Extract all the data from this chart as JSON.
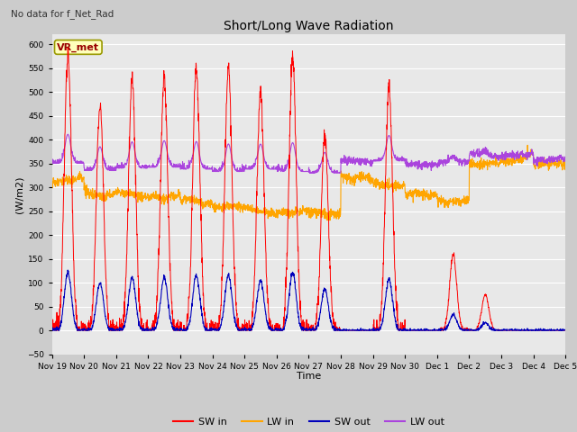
{
  "title": "Short/Long Wave Radiation",
  "subtitle": "No data for f_Net_Rad",
  "xlabel": "Time",
  "ylabel": "(W/m2)",
  "ylim": [
    -50,
    620
  ],
  "yticks": [
    -50,
    0,
    50,
    100,
    150,
    200,
    250,
    300,
    350,
    400,
    450,
    500,
    550,
    600
  ],
  "fig_bg": "#cccccc",
  "plot_bg": "#e8e8e8",
  "station_label": "VR_met",
  "colors": {
    "sw_in": "#ff0000",
    "lw_in": "#ffa500",
    "sw_out": "#0000bb",
    "lw_out": "#aa44dd"
  },
  "legend": [
    {
      "label": "SW in",
      "color": "#ff0000"
    },
    {
      "label": "LW in",
      "color": "#ffa500"
    },
    {
      "label": "SW out",
      "color": "#0000bb"
    },
    {
      "label": "LW out",
      "color": "#aa44dd"
    }
  ],
  "n_days": 16,
  "start_day": 19,
  "points_per_day": 144,
  "day_peaks_sw": [
    580,
    475,
    525,
    530,
    550,
    550,
    500,
    575,
    410,
    0,
    510,
    0,
    160,
    75,
    0,
    0
  ],
  "lw_in_base": [
    315,
    285,
    285,
    280,
    270,
    260,
    250,
    248,
    245,
    320,
    305,
    285,
    270,
    350,
    360,
    350
  ],
  "lw_out_base": [
    350,
    335,
    340,
    342,
    338,
    333,
    338,
    333,
    330,
    355,
    355,
    348,
    352,
    368,
    368,
    358
  ],
  "grid_color": "#ffffff",
  "spine_color": "#aaaaaa"
}
